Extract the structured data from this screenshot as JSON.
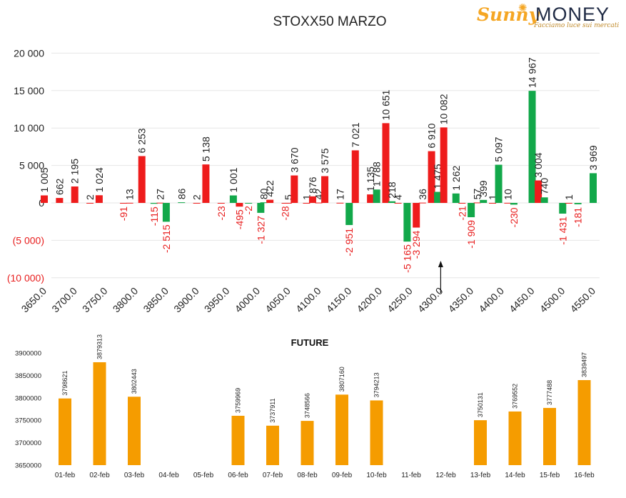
{
  "logo": {
    "sunny": "Sunny",
    "money": "MONEY",
    "tagline": "Facciamo luce sui mercati"
  },
  "colors": {
    "call": "#ee1c1c",
    "put": "#12a84a",
    "future": "#f59c00",
    "negative_label": "#e81e1e"
  },
  "chart_data": [
    {
      "type": "bar",
      "title": "STOXX50 MARZO",
      "categories": [
        "3650.0",
        "3700.0",
        "3750.0",
        "3800.0",
        "3850.0",
        "3900.0",
        "3950.0",
        "4000.0",
        "4050.0",
        "4100.0",
        "4150.0",
        "4200.0",
        "4250.0",
        "4300.0",
        "4350.0",
        "4400.0",
        "4450.0",
        "4500.0",
        "4550.0"
      ],
      "bars": [
        {
          "strike": 3650,
          "value": 1005,
          "series": "red",
          "label": "1 005"
        },
        {
          "strike": 3675,
          "value": 662,
          "series": "red",
          "label": "662"
        },
        {
          "strike": 3700,
          "value": 2195,
          "series": "red",
          "label": "2 195"
        },
        {
          "strike": 3725,
          "value": 2,
          "series": "red",
          "label": "2"
        },
        {
          "strike": 3740,
          "value": 1024,
          "series": "red",
          "label": "1 024"
        },
        {
          "strike": 3780,
          "value": -91,
          "series": "red",
          "label": "-91"
        },
        {
          "strike": 3790,
          "value": 13,
          "series": "red",
          "label": "13"
        },
        {
          "strike": 3810,
          "value": 6253,
          "series": "red",
          "label": "6 253"
        },
        {
          "strike": 3830,
          "value": -115,
          "series": "green",
          "label": "-115"
        },
        {
          "strike": 3840,
          "value": 27,
          "series": "red",
          "label": "27"
        },
        {
          "strike": 3850,
          "value": -2515,
          "series": "green",
          "label": "-2 515"
        },
        {
          "strike": 3875,
          "value": 86,
          "series": "green",
          "label": "86"
        },
        {
          "strike": 3900,
          "value": 2,
          "series": "red",
          "label": "2"
        },
        {
          "strike": 3915,
          "value": 5138,
          "series": "red",
          "label": "5 138"
        },
        {
          "strike": 3940,
          "value": -23,
          "series": "red",
          "label": "-23"
        },
        {
          "strike": 3960,
          "value": 1001,
          "series": "green",
          "label": "1 001"
        },
        {
          "strike": 3970,
          "value": -495,
          "series": "red",
          "label": "-495"
        },
        {
          "strike": 3985,
          "value": -2,
          "series": "green",
          "label": "-2"
        },
        {
          "strike": 4005,
          "value": -1327,
          "series": "green",
          "label": "-1 327"
        },
        {
          "strike": 4010,
          "value": 80,
          "series": "green",
          "label": "80"
        },
        {
          "strike": 4020,
          "value": 422,
          "series": "red",
          "label": "422"
        },
        {
          "strike": 4045,
          "value": -28,
          "series": "red",
          "label": "-28"
        },
        {
          "strike": 4050,
          "value": 5,
          "series": "red",
          "label": "5"
        },
        {
          "strike": 4060,
          "value": 3670,
          "series": "red",
          "label": "3 670"
        },
        {
          "strike": 4080,
          "value": 1,
          "series": "red",
          "label": "1"
        },
        {
          "strike": 4090,
          "value": 876,
          "series": "red",
          "label": "876"
        },
        {
          "strike": 4100,
          "value": 42,
          "series": "red",
          "label": "42"
        },
        {
          "strike": 4110,
          "value": 3575,
          "series": "red",
          "label": "3 575"
        },
        {
          "strike": 4135,
          "value": 17,
          "series": "red",
          "label": "17"
        },
        {
          "strike": 4150,
          "value": -2951,
          "series": "green",
          "label": "-2 951"
        },
        {
          "strike": 4160,
          "value": 7021,
          "series": "red",
          "label": "7 021"
        },
        {
          "strike": 4185,
          "value": 1135,
          "series": "red",
          "label": "1 135"
        },
        {
          "strike": 4195,
          "value": 1788,
          "series": "green",
          "label": "1 788"
        },
        {
          "strike": 4210,
          "value": 10651,
          "series": "red",
          "label": "10 651"
        },
        {
          "strike": 4220,
          "value": 218,
          "series": "green",
          "label": "218"
        },
        {
          "strike": 4230,
          "value": 4,
          "series": "red",
          "label": "4"
        },
        {
          "strike": 4245,
          "value": -5165,
          "series": "green",
          "label": "-5 165"
        },
        {
          "strike": 4260,
          "value": -3294,
          "series": "red",
          "label": "-3 294"
        },
        {
          "strike": 4270,
          "value": 36,
          "series": "red",
          "label": "36"
        },
        {
          "strike": 4285,
          "value": 6910,
          "series": "red",
          "label": "6 910"
        },
        {
          "strike": 4295,
          "value": 1475,
          "series": "green",
          "label": "1 475"
        },
        {
          "strike": 4305,
          "value": 10082,
          "series": "red",
          "label": "10 082"
        },
        {
          "strike": 4325,
          "value": 1262,
          "series": "green",
          "label": "1 262"
        },
        {
          "strike": 4335,
          "value": -21,
          "series": "red",
          "label": "-21"
        },
        {
          "strike": 4350,
          "value": -1909,
          "series": "green",
          "label": "-1 909"
        },
        {
          "strike": 4360,
          "value": 57,
          "series": "red",
          "label": "57"
        },
        {
          "strike": 4370,
          "value": 399,
          "series": "green",
          "label": "399"
        },
        {
          "strike": 4385,
          "value": 1,
          "series": "red",
          "label": "1"
        },
        {
          "strike": 4395,
          "value": 5097,
          "series": "green",
          "label": "5 097"
        },
        {
          "strike": 4410,
          "value": 10,
          "series": "red",
          "label": "10"
        },
        {
          "strike": 4420,
          "value": -230,
          "series": "green",
          "label": "-230"
        },
        {
          "strike": 4450,
          "value": 14967,
          "series": "green",
          "label": "14 967"
        },
        {
          "strike": 4460,
          "value": 3004,
          "series": "red",
          "label": "3 004"
        },
        {
          "strike": 4470,
          "value": 740,
          "series": "green",
          "label": "740"
        },
        {
          "strike": 4500,
          "value": -1431,
          "series": "green",
          "label": "-1 431"
        },
        {
          "strike": 4510,
          "value": 1,
          "series": "red",
          "label": "1"
        },
        {
          "strike": 4525,
          "value": -181,
          "series": "green",
          "label": "-181"
        },
        {
          "strike": 4550,
          "value": 3969,
          "series": "green",
          "label": "3 969"
        }
      ],
      "yticks": [
        {
          "value": 20000,
          "label": "20 000"
        },
        {
          "value": 15000,
          "label": "15 000"
        },
        {
          "value": 10000,
          "label": "10 000"
        },
        {
          "value": 5000,
          "label": "5 000"
        },
        {
          "value": 0,
          "label": "0"
        },
        {
          "value": -5000,
          "label": "(5 000)"
        },
        {
          "value": -10000,
          "label": "(10 000)"
        }
      ],
      "ylim": [
        -10000,
        20000
      ],
      "xlim": [
        3650,
        4550
      ],
      "arrow_at": 4300,
      "grid": true,
      "legend": "none"
    },
    {
      "type": "bar",
      "title": "FUTURE",
      "categories": [
        "01-feb",
        "02-feb",
        "03-feb",
        "04-feb",
        "05-feb",
        "06-feb",
        "07-feb",
        "08-feb",
        "09-feb",
        "10-feb",
        "11-feb",
        "12-feb",
        "13-feb",
        "14-feb",
        "15-feb",
        "16-feb"
      ],
      "values": [
        3798621,
        3879313,
        3802443,
        null,
        null,
        3759969,
        3737911,
        3748566,
        3807160,
        3794213,
        null,
        null,
        3750131,
        3769552,
        3777488,
        3839497
      ],
      "yticks": [
        "3900000",
        "3850000",
        "3800000",
        "3750000",
        "3700000",
        "3650000"
      ],
      "ylim": [
        3650000,
        3900000
      ],
      "grid": false,
      "legend": "none"
    }
  ]
}
